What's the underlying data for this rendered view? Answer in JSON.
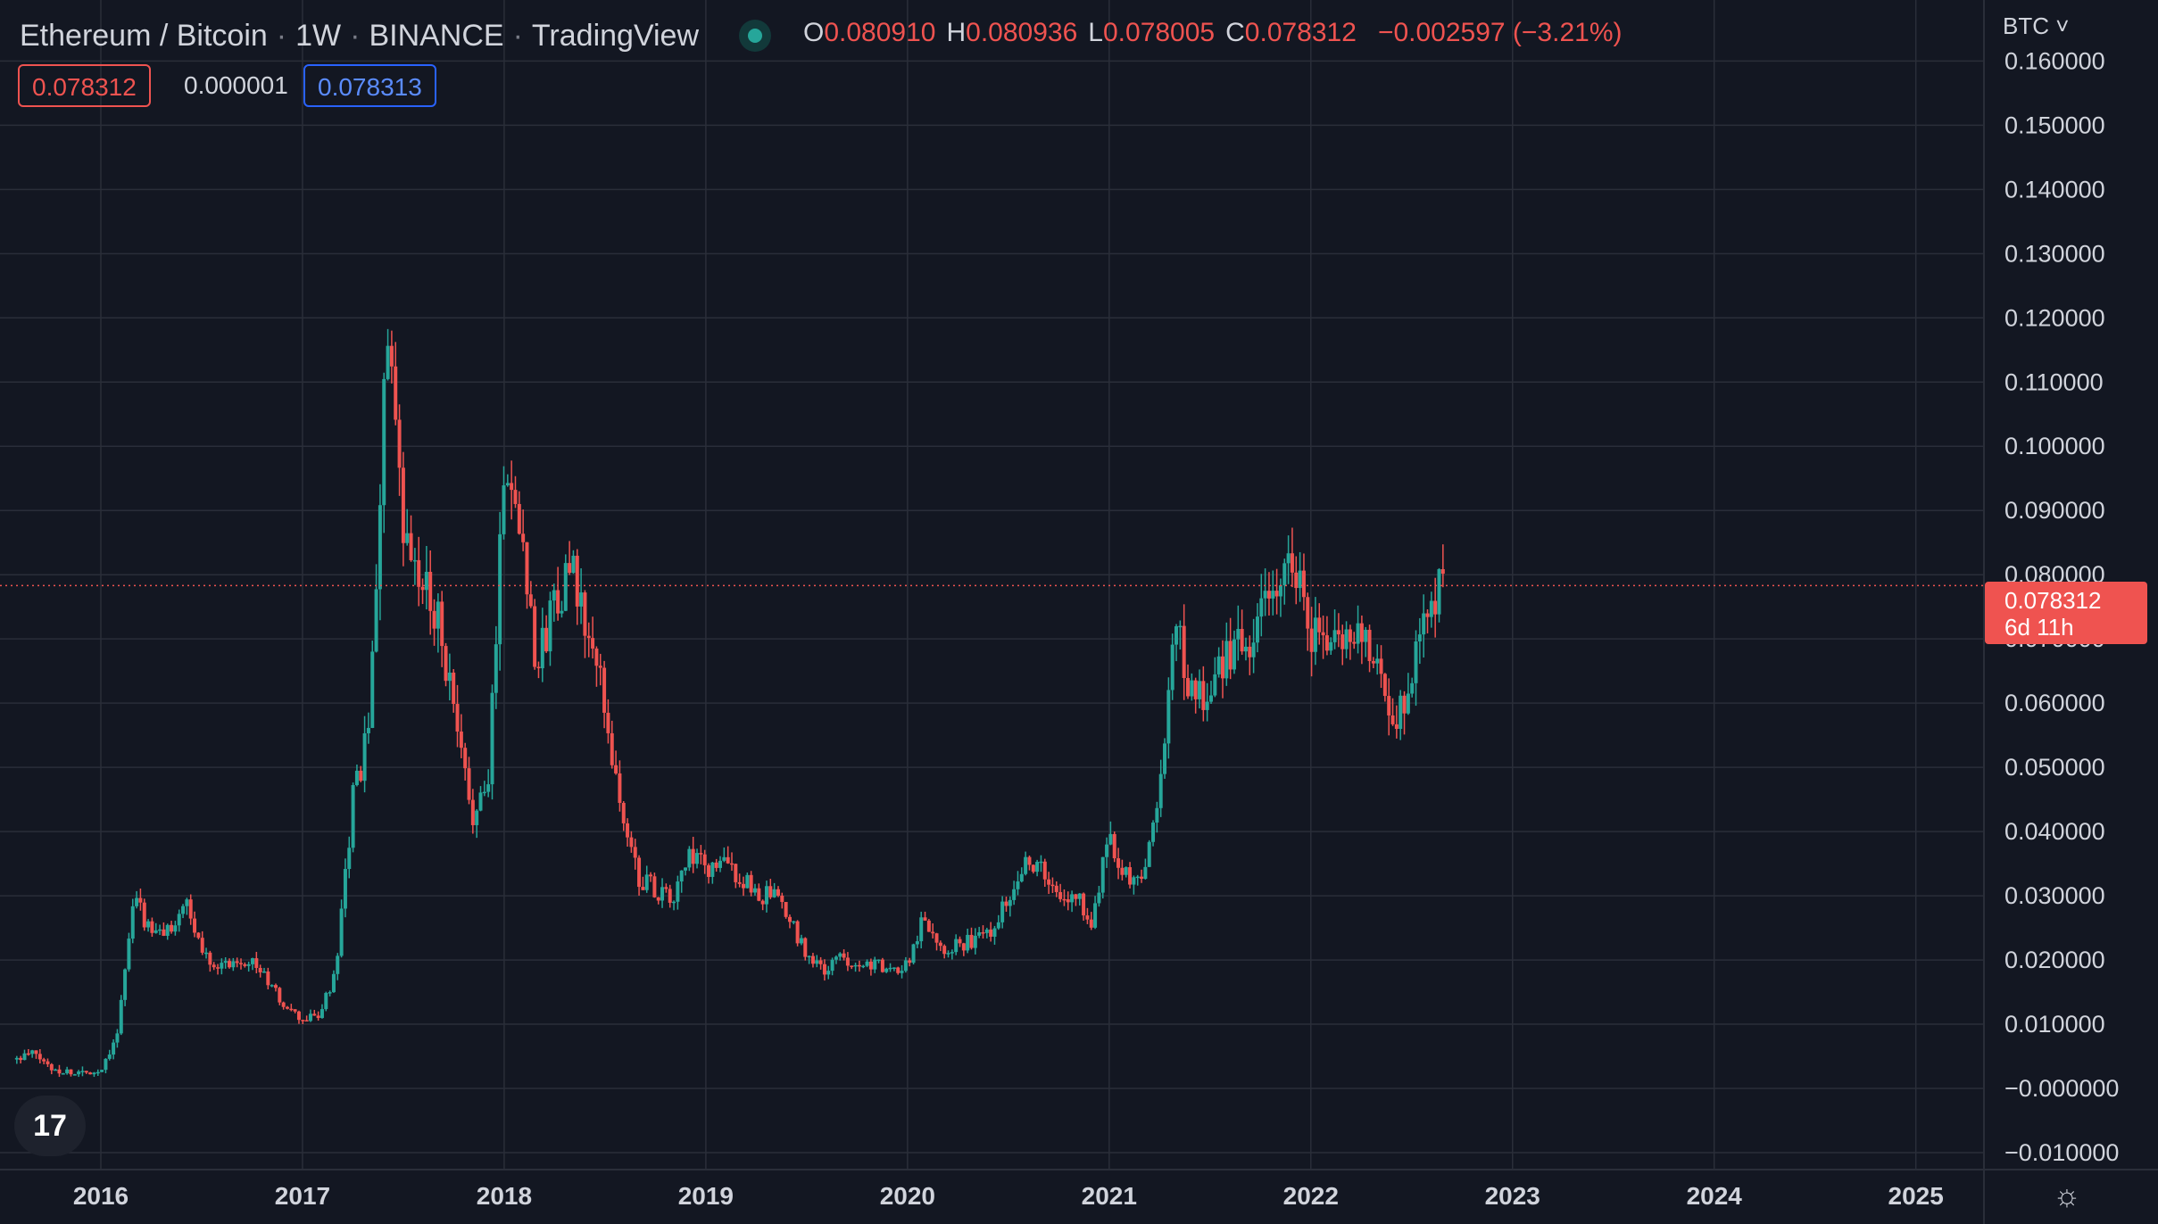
{
  "header": {
    "symbol": "Ethereum / Bitcoin",
    "interval": "1W",
    "exchange": "BINANCE",
    "provider": "TradingView",
    "open_label": "O",
    "open": "0.080910",
    "high_label": "H",
    "high": "0.080936",
    "low_label": "L",
    "low": "0.078005",
    "close_label": "C",
    "close": "0.078312",
    "change": "−0.002597 (−3.21%)"
  },
  "quote": {
    "bid": "0.078312",
    "spread": "0.000001",
    "ask": "0.078313"
  },
  "price_axis": {
    "unit_label": "BTC"
  },
  "last_price": {
    "value": "0.078312",
    "countdown": "6d 11h"
  },
  "colors": {
    "up": "#26a69a",
    "down": "#ef5350",
    "background": "#131722",
    "grid": "#2a2e39",
    "ask": "#2962ff"
  },
  "icons": {
    "logo": "tradingview-logo-icon",
    "settings": "gear-icon",
    "unit_dropdown": "chevron-down-icon"
  },
  "chart_data": {
    "type": "candlestick",
    "title": "Ethereum / Bitcoin · 1W · BINANCE",
    "xlabel": "",
    "ylabel": "",
    "x_ticks": [
      "2016",
      "2017",
      "2018",
      "2019",
      "2020",
      "2021",
      "2022",
      "2023",
      "2024",
      "2025"
    ],
    "y_ticks": [
      "0.160000",
      "0.150000",
      "0.140000",
      "0.130000",
      "0.120000",
      "0.110000",
      "0.100000",
      "0.090000",
      "0.080000",
      "0.070000",
      "0.060000",
      "0.050000",
      "0.040000",
      "0.030000",
      "0.020000",
      "0.010000",
      "−0.000000",
      "−0.010000"
    ],
    "xlim": [
      "2015-07",
      "2025-05"
    ],
    "ylim": [
      -0.0125,
      0.1695
    ],
    "grid": true,
    "last_price_line": 0.078312,
    "series": [
      {
        "points": [
          [
            "2015-08",
            0.0045
          ],
          [
            "2015-09",
            0.0055
          ],
          [
            "2015-10",
            0.0032
          ],
          [
            "2015-11",
            0.0026
          ],
          [
            "2015-12",
            0.0024
          ],
          [
            "2016-01",
            0.0028
          ],
          [
            "2016-02",
            0.009
          ],
          [
            "2016-03",
            0.03
          ],
          [
            "2016-04",
            0.024
          ],
          [
            "2016-05",
            0.0245
          ],
          [
            "2016-06",
            0.029
          ],
          [
            "2016-07",
            0.0215
          ],
          [
            "2016-08",
            0.019
          ],
          [
            "2016-09",
            0.02
          ],
          [
            "2016-10",
            0.02
          ],
          [
            "2016-11",
            0.0165
          ],
          [
            "2016-12",
            0.0125
          ],
          [
            "2017-01",
            0.0105
          ],
          [
            "2017-02",
            0.0115
          ],
          [
            "2017-03",
            0.018
          ],
          [
            "2017-04",
            0.045
          ],
          [
            "2017-05",
            0.056
          ],
          [
            "2017-06",
            0.118
          ],
          [
            "2017-07",
            0.085
          ],
          [
            "2017-08",
            0.078
          ],
          [
            "2017-09",
            0.075
          ],
          [
            "2017-10",
            0.058
          ],
          [
            "2017-11",
            0.043
          ],
          [
            "2017-12",
            0.045
          ],
          [
            "2018-01",
            0.098
          ],
          [
            "2018-02",
            0.088
          ],
          [
            "2018-03",
            0.065
          ],
          [
            "2018-04",
            0.077
          ],
          [
            "2018-05",
            0.08
          ],
          [
            "2018-06",
            0.07
          ],
          [
            "2018-07",
            0.06
          ],
          [
            "2018-08",
            0.042
          ],
          [
            "2018-09",
            0.033
          ],
          [
            "2018-10",
            0.031
          ],
          [
            "2018-11",
            0.029
          ],
          [
            "2018-12",
            0.036
          ],
          [
            "2019-01",
            0.034
          ],
          [
            "2019-02",
            0.035
          ],
          [
            "2019-03",
            0.033
          ],
          [
            "2019-04",
            0.03
          ],
          [
            "2019-05",
            0.03
          ],
          [
            "2019-06",
            0.026
          ],
          [
            "2019-07",
            0.021
          ],
          [
            "2019-08",
            0.018
          ],
          [
            "2019-09",
            0.0205
          ],
          [
            "2019-10",
            0.0195
          ],
          [
            "2019-11",
            0.0195
          ],
          [
            "2019-12",
            0.018
          ],
          [
            "2020-01",
            0.0195
          ],
          [
            "2020-02",
            0.027
          ],
          [
            "2020-03",
            0.022
          ],
          [
            "2020-04",
            0.0225
          ],
          [
            "2020-05",
            0.023
          ],
          [
            "2020-06",
            0.025
          ],
          [
            "2020-07",
            0.03
          ],
          [
            "2020-08",
            0.036
          ],
          [
            "2020-09",
            0.034
          ],
          [
            "2020-10",
            0.029
          ],
          [
            "2020-11",
            0.03
          ],
          [
            "2020-12",
            0.026
          ],
          [
            "2021-01",
            0.04
          ],
          [
            "2021-02",
            0.033
          ],
          [
            "2021-03",
            0.032
          ],
          [
            "2021-04",
            0.048
          ],
          [
            "2021-05",
            0.072
          ],
          [
            "2021-06",
            0.06
          ],
          [
            "2021-07",
            0.062
          ],
          [
            "2021-08",
            0.068
          ],
          [
            "2021-09",
            0.069
          ],
          [
            "2021-10",
            0.072
          ],
          [
            "2021-11",
            0.08
          ],
          [
            "2021-12",
            0.082
          ],
          [
            "2022-01",
            0.072
          ],
          [
            "2022-02",
            0.068
          ],
          [
            "2022-03",
            0.07
          ],
          [
            "2022-04",
            0.072
          ],
          [
            "2022-05",
            0.065
          ],
          [
            "2022-06",
            0.056
          ],
          [
            "2022-07",
            0.066
          ],
          [
            "2022-08",
            0.077
          ],
          [
            "2022-09",
            0.0783
          ]
        ]
      }
    ]
  }
}
